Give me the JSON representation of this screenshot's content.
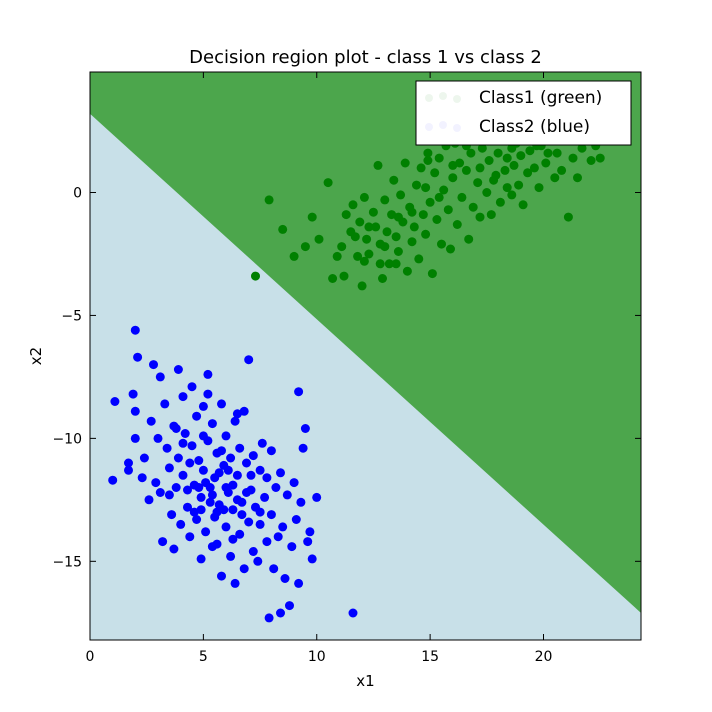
{
  "chart_data": {
    "type": "scatter",
    "title": "Decision region plot - class 1 vs class 2",
    "xlabel": "x1",
    "ylabel": "x2",
    "xlim": [
      0,
      24.3
    ],
    "ylim": [
      -18.2,
      4.9
    ],
    "xticks": [
      0,
      5,
      10,
      15,
      20
    ],
    "yticks": [
      0,
      -5,
      -10,
      -15
    ],
    "grid": false,
    "legend_position": "top-right",
    "decision_boundary": {
      "description_line": [
        [
          0,
          3.2
        ],
        [
          24.3,
          -17.1
        ]
      ],
      "upper_region_color": "#4ca64c",
      "lower_region_color": "#c8e0e8"
    },
    "series": [
      {
        "name": "Class1 (green)",
        "color": "#008000",
        "points": [
          [
            7.9,
            -0.3
          ],
          [
            7.3,
            -3.4
          ],
          [
            8.5,
            -1.5
          ],
          [
            9.0,
            -2.6
          ],
          [
            9.5,
            -2.2
          ],
          [
            9.8,
            -1.0
          ],
          [
            10.1,
            -1.9
          ],
          [
            10.5,
            0.4
          ],
          [
            10.7,
            -3.5
          ],
          [
            10.9,
            -2.6
          ],
          [
            11.1,
            -2.2
          ],
          [
            11.2,
            -3.4
          ],
          [
            11.3,
            -0.9
          ],
          [
            11.5,
            -1.6
          ],
          [
            11.6,
            -0.5
          ],
          [
            11.8,
            -2.6
          ],
          [
            11.9,
            -1.2
          ],
          [
            12.0,
            -3.8
          ],
          [
            12.1,
            -0.2
          ],
          [
            12.2,
            -1.9
          ],
          [
            12.3,
            -2.5
          ],
          [
            12.5,
            -0.8
          ],
          [
            12.6,
            -1.4
          ],
          [
            12.7,
            1.1
          ],
          [
            12.8,
            -2.1
          ],
          [
            12.9,
            -3.5
          ],
          [
            13.0,
            -0.3
          ],
          [
            13.1,
            -1.6
          ],
          [
            13.2,
            -2.9
          ],
          [
            13.3,
            -0.9
          ],
          [
            13.4,
            0.5
          ],
          [
            13.5,
            -1.8
          ],
          [
            13.6,
            -2.4
          ],
          [
            13.7,
            -0.1
          ],
          [
            13.8,
            -1.2
          ],
          [
            13.9,
            1.2
          ],
          [
            14.0,
            -3.2
          ],
          [
            14.1,
            -0.6
          ],
          [
            14.2,
            -2.0
          ],
          [
            14.3,
            -1.4
          ],
          [
            14.4,
            0.3
          ],
          [
            14.5,
            -2.7
          ],
          [
            14.6,
            1.0
          ],
          [
            14.7,
            -0.9
          ],
          [
            14.8,
            -1.7
          ],
          [
            14.9,
            1.6
          ],
          [
            15.0,
            -0.4
          ],
          [
            15.1,
            -3.3
          ],
          [
            15.2,
            0.8
          ],
          [
            15.3,
            -1.1
          ],
          [
            15.4,
            1.4
          ],
          [
            15.5,
            -2.1
          ],
          [
            15.6,
            0.1
          ],
          [
            15.7,
            1.9
          ],
          [
            15.8,
            -0.7
          ],
          [
            15.9,
            -2.3
          ],
          [
            16.0,
            0.6
          ],
          [
            16.1,
            2.0
          ],
          [
            16.2,
            -1.3
          ],
          [
            16.3,
            1.2
          ],
          [
            16.4,
            -0.2
          ],
          [
            16.5,
            2.5
          ],
          [
            16.6,
            0.9
          ],
          [
            16.7,
            -1.9
          ],
          [
            16.8,
            1.6
          ],
          [
            16.9,
            -0.6
          ],
          [
            17.0,
            2.2
          ],
          [
            17.1,
            0.4
          ],
          [
            17.2,
            -1.0
          ],
          [
            17.3,
            1.8
          ],
          [
            17.4,
            2.8
          ],
          [
            17.5,
            0.0
          ],
          [
            17.6,
            1.3
          ],
          [
            17.7,
            -0.9
          ],
          [
            17.8,
            2.4
          ],
          [
            17.9,
            0.7
          ],
          [
            18.0,
            1.6
          ],
          [
            18.1,
            -0.4
          ],
          [
            18.2,
            2.1
          ],
          [
            18.3,
            0.9
          ],
          [
            18.4,
            1.4
          ],
          [
            18.5,
            2.6
          ],
          [
            18.6,
            -0.1
          ],
          [
            18.7,
            1.1
          ],
          [
            18.8,
            2.0
          ],
          [
            18.9,
            0.3
          ],
          [
            19.0,
            1.5
          ],
          [
            19.1,
            -0.5
          ],
          [
            19.2,
            2.3
          ],
          [
            19.3,
            0.8
          ],
          [
            19.4,
            1.7
          ],
          [
            19.5,
            2.6
          ],
          [
            19.6,
            1.0
          ],
          [
            19.8,
            0.2
          ],
          [
            19.9,
            1.9
          ],
          [
            20.1,
            1.2
          ],
          [
            20.3,
            2.4
          ],
          [
            20.5,
            0.6
          ],
          [
            20.6,
            1.6
          ],
          [
            20.8,
            0.9
          ],
          [
            21.0,
            2.1
          ],
          [
            21.1,
            -1.0
          ],
          [
            21.3,
            1.4
          ],
          [
            21.5,
            0.6
          ],
          [
            21.7,
            1.8
          ],
          [
            21.9,
            2.2
          ],
          [
            22.1,
            1.3
          ],
          [
            22.3,
            1.9
          ],
          [
            22.5,
            1.4
          ],
          [
            12.3,
            -1.4
          ],
          [
            13.0,
            -2.2
          ],
          [
            13.6,
            -1.0
          ],
          [
            14.2,
            -0.8
          ],
          [
            14.8,
            0.2
          ],
          [
            15.4,
            -0.2
          ],
          [
            16.0,
            1.1
          ],
          [
            16.6,
            1.9
          ],
          [
            17.2,
            1.0
          ],
          [
            17.8,
            0.5
          ],
          [
            18.4,
            0.2
          ],
          [
            15.0,
            2.6
          ],
          [
            14.6,
            2.8
          ],
          [
            16.2,
            2.9
          ],
          [
            17.4,
            3.0
          ],
          [
            13.5,
            -2.9
          ],
          [
            12.1,
            -2.8
          ],
          [
            11.7,
            -1.8
          ],
          [
            12.8,
            -2.9
          ],
          [
            14.9,
            1.3
          ],
          [
            18.6,
            1.8
          ],
          [
            19.7,
            1.9
          ],
          [
            20.2,
            1.6
          ]
        ]
      },
      {
        "name": "Class2 (blue)",
        "color": "#0000ff",
        "points": [
          [
            1.0,
            -11.7
          ],
          [
            1.1,
            -8.5
          ],
          [
            1.7,
            -11.0
          ],
          [
            1.7,
            -11.3
          ],
          [
            1.9,
            -8.2
          ],
          [
            2.0,
            -5.6
          ],
          [
            2.0,
            -10.0
          ],
          [
            2.0,
            -8.9
          ],
          [
            2.1,
            -6.7
          ],
          [
            2.3,
            -11.6
          ],
          [
            2.4,
            -10.8
          ],
          [
            2.6,
            -12.5
          ],
          [
            2.7,
            -9.3
          ],
          [
            2.8,
            -7.0
          ],
          [
            2.9,
            -11.8
          ],
          [
            3.0,
            -10.0
          ],
          [
            3.1,
            -12.2
          ],
          [
            3.1,
            -7.5
          ],
          [
            3.2,
            -14.2
          ],
          [
            3.3,
            -8.6
          ],
          [
            3.4,
            -10.4
          ],
          [
            3.5,
            -11.2
          ],
          [
            3.6,
            -13.1
          ],
          [
            3.7,
            -9.5
          ],
          [
            3.7,
            -14.5
          ],
          [
            3.8,
            -12.0
          ],
          [
            3.9,
            -7.2
          ],
          [
            3.9,
            -10.8
          ],
          [
            4.0,
            -13.5
          ],
          [
            4.1,
            -8.3
          ],
          [
            4.1,
            -11.5
          ],
          [
            4.2,
            -9.8
          ],
          [
            4.3,
            -12.8
          ],
          [
            4.4,
            -14.0
          ],
          [
            4.5,
            -10.3
          ],
          [
            4.5,
            -7.9
          ],
          [
            4.6,
            -11.9
          ],
          [
            4.7,
            -13.3
          ],
          [
            4.7,
            -9.1
          ],
          [
            4.8,
            -10.9
          ],
          [
            4.9,
            -12.4
          ],
          [
            4.9,
            -14.9
          ],
          [
            5.0,
            -8.7
          ],
          [
            5.0,
            -11.3
          ],
          [
            5.1,
            -13.8
          ],
          [
            5.2,
            -10.1
          ],
          [
            5.2,
            -7.4
          ],
          [
            5.3,
            -12.0
          ],
          [
            5.4,
            -14.4
          ],
          [
            5.4,
            -9.4
          ],
          [
            5.5,
            -11.6
          ],
          [
            5.6,
            -13.0
          ],
          [
            5.6,
            -10.6
          ],
          [
            5.7,
            -12.7
          ],
          [
            5.8,
            -15.6
          ],
          [
            5.8,
            -8.6
          ],
          [
            5.9,
            -11.1
          ],
          [
            6.0,
            -13.6
          ],
          [
            6.0,
            -9.9
          ],
          [
            6.1,
            -12.2
          ],
          [
            6.2,
            -14.8
          ],
          [
            6.2,
            -10.8
          ],
          [
            6.3,
            -12.9
          ],
          [
            6.4,
            -15.9
          ],
          [
            6.4,
            -9.3
          ],
          [
            6.5,
            -11.5
          ],
          [
            6.6,
            -13.9
          ],
          [
            6.6,
            -10.4
          ],
          [
            6.7,
            -12.6
          ],
          [
            6.8,
            -15.3
          ],
          [
            6.8,
            -8.9
          ],
          [
            6.9,
            -11.0
          ],
          [
            7.0,
            -13.4
          ],
          [
            7.0,
            -6.8
          ],
          [
            7.1,
            -12.1
          ],
          [
            7.2,
            -14.6
          ],
          [
            7.2,
            -10.7
          ],
          [
            7.3,
            -12.8
          ],
          [
            7.4,
            -15.0
          ],
          [
            7.5,
            -11.3
          ],
          [
            7.5,
            -13.5
          ],
          [
            7.6,
            -10.2
          ],
          [
            7.7,
            -12.4
          ],
          [
            7.8,
            -14.2
          ],
          [
            7.8,
            -11.6
          ],
          [
            7.9,
            -17.3
          ],
          [
            8.0,
            -13.1
          ],
          [
            8.0,
            -10.5
          ],
          [
            8.1,
            -15.3
          ],
          [
            8.2,
            -12.0
          ],
          [
            8.3,
            -14.0
          ],
          [
            8.4,
            -17.1
          ],
          [
            8.4,
            -11.4
          ],
          [
            8.5,
            -13.6
          ],
          [
            8.6,
            -15.7
          ],
          [
            8.7,
            -12.3
          ],
          [
            8.8,
            -16.8
          ],
          [
            8.9,
            -14.4
          ],
          [
            9.0,
            -11.8
          ],
          [
            9.1,
            -13.3
          ],
          [
            9.2,
            -8.1
          ],
          [
            9.2,
            -15.9
          ],
          [
            9.3,
            -12.6
          ],
          [
            9.4,
            -10.4
          ],
          [
            9.5,
            -9.6
          ],
          [
            9.6,
            -14.2
          ],
          [
            9.7,
            -13.8
          ],
          [
            9.8,
            -14.9
          ],
          [
            10.0,
            -12.4
          ],
          [
            11.6,
            -17.1
          ],
          [
            4.4,
            -11.0
          ],
          [
            4.8,
            -12.0
          ],
          [
            5.1,
            -11.8
          ],
          [
            5.4,
            -12.3
          ],
          [
            5.7,
            -11.4
          ],
          [
            6.0,
            -12.0
          ],
          [
            6.3,
            -11.9
          ],
          [
            6.5,
            -12.5
          ],
          [
            5.3,
            -12.6
          ],
          [
            5.9,
            -12.9
          ],
          [
            6.1,
            -11.3
          ],
          [
            5.5,
            -13.2
          ],
          [
            4.9,
            -12.9
          ],
          [
            6.7,
            -13.1
          ],
          [
            4.6,
            -13.0
          ],
          [
            5.8,
            -10.5
          ],
          [
            6.9,
            -12.2
          ],
          [
            5.0,
            -9.9
          ],
          [
            4.3,
            -12.1
          ],
          [
            7.1,
            -11.5
          ],
          [
            3.5,
            -12.3
          ],
          [
            5.6,
            -14.3
          ],
          [
            6.3,
            -14.1
          ],
          [
            7.5,
            -13.0
          ],
          [
            4.1,
            -10.2
          ],
          [
            3.8,
            -9.6
          ],
          [
            5.2,
            -8.2
          ],
          [
            6.5,
            -9.0
          ]
        ]
      }
    ]
  }
}
